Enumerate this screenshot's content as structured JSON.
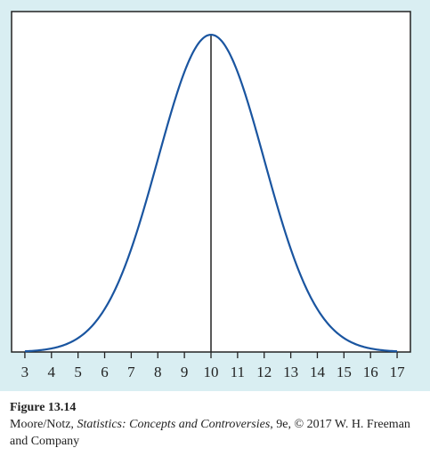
{
  "chart_data": {
    "type": "line",
    "title": "",
    "xlabel": "",
    "ylabel": "",
    "xlim": [
      2.5,
      17.5
    ],
    "x_ticks": [
      3,
      4,
      5,
      6,
      7,
      8,
      9,
      10,
      11,
      12,
      13,
      14,
      15,
      16,
      17
    ],
    "distribution": "normal",
    "mean": 10,
    "std_dev": 2,
    "curve_x_range": [
      3,
      17
    ],
    "center_line_x": 10,
    "y_axis_shown": false,
    "grid": false,
    "series": [
      {
        "color": "#1a55a0",
        "x": [
          3,
          3.5,
          4,
          4.5,
          5,
          5.5,
          6,
          6.5,
          7,
          7.5,
          8,
          8.5,
          9,
          9.5,
          10,
          10.5,
          11,
          11.5,
          12,
          12.5,
          13,
          13.5,
          14,
          14.5,
          15,
          15.5,
          16,
          16.5,
          17
        ],
        "y": [
          0.0004,
          0.0011,
          0.0022,
          0.0043,
          0.0088,
          0.0158,
          0.027,
          0.0431,
          0.0648,
          0.0913,
          0.121,
          0.1506,
          0.176,
          0.1933,
          0.1995,
          0.1933,
          0.176,
          0.1506,
          0.121,
          0.0913,
          0.0648,
          0.0431,
          0.027,
          0.0158,
          0.0088,
          0.0043,
          0.0022,
          0.0011,
          0.0004
        ]
      }
    ]
  },
  "colors": {
    "background": "#d9eef2",
    "plot_area": "#ffffff",
    "curve": "#1a55a0",
    "axis": "#222222"
  },
  "caption": {
    "title": "Figure 13.14",
    "author_prefix": "Moore/Notz, ",
    "book_title": "Statistics: Concepts and Controversies",
    "credit_suffix": ", 9e, © 2017 W. H. Freeman and Company"
  }
}
